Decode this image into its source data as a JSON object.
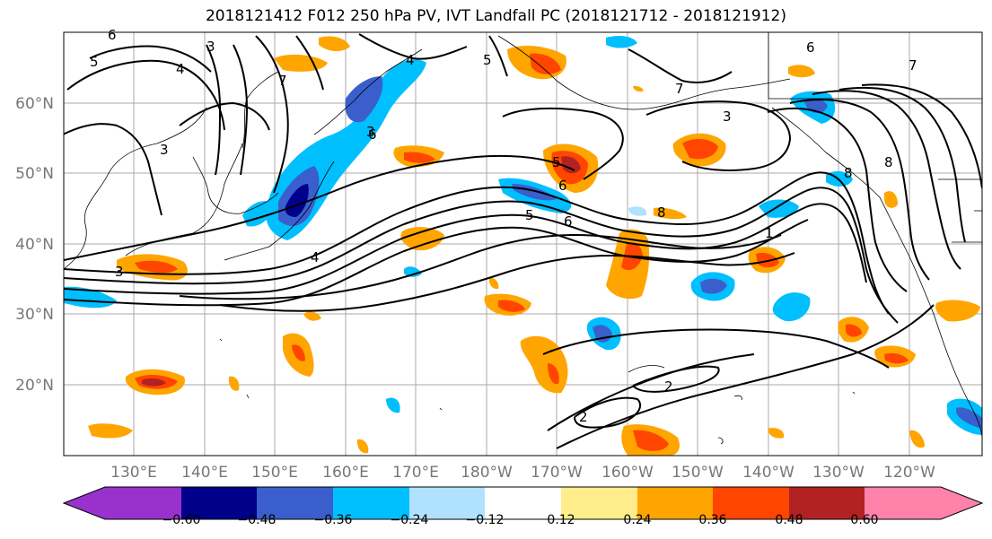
{
  "title": "2018121412 F012 250 hPa PV, IVT Landfall PC (2018121712 - 2018121912)",
  "lat_labels": [
    "60°N",
    "50°N",
    "40°N",
    "30°N",
    "20°N"
  ],
  "lon_labels": [
    "130°E",
    "140°E",
    "150°E",
    "160°E",
    "170°E",
    "180°W",
    "170°W",
    "160°W",
    "150°W",
    "140°W",
    "130°W",
    "120°W"
  ],
  "colorbar": {
    "ticks": [
      "−0.60",
      "−0.48",
      "−0.36",
      "−0.24",
      "−0.12",
      "0.12",
      "0.24",
      "0.36",
      "0.48",
      "0.60"
    ],
    "colors": [
      "#9932cc",
      "#00008b",
      "#3a5fcd",
      "#00bfff",
      "#b0e2ff",
      "#ffffff",
      "#ffec8b",
      "#ffa500",
      "#ff4500",
      "#b22222",
      "#ff82ab"
    ]
  },
  "contour_labels": [
    "6",
    "5",
    "3",
    "4",
    "7",
    "5",
    "4",
    "3",
    "3",
    "5",
    "6",
    "8",
    "7",
    "6",
    "3",
    "5",
    "6",
    "8",
    "4",
    "3",
    "1",
    "8",
    "2",
    "2",
    "6",
    "7"
  ]
}
